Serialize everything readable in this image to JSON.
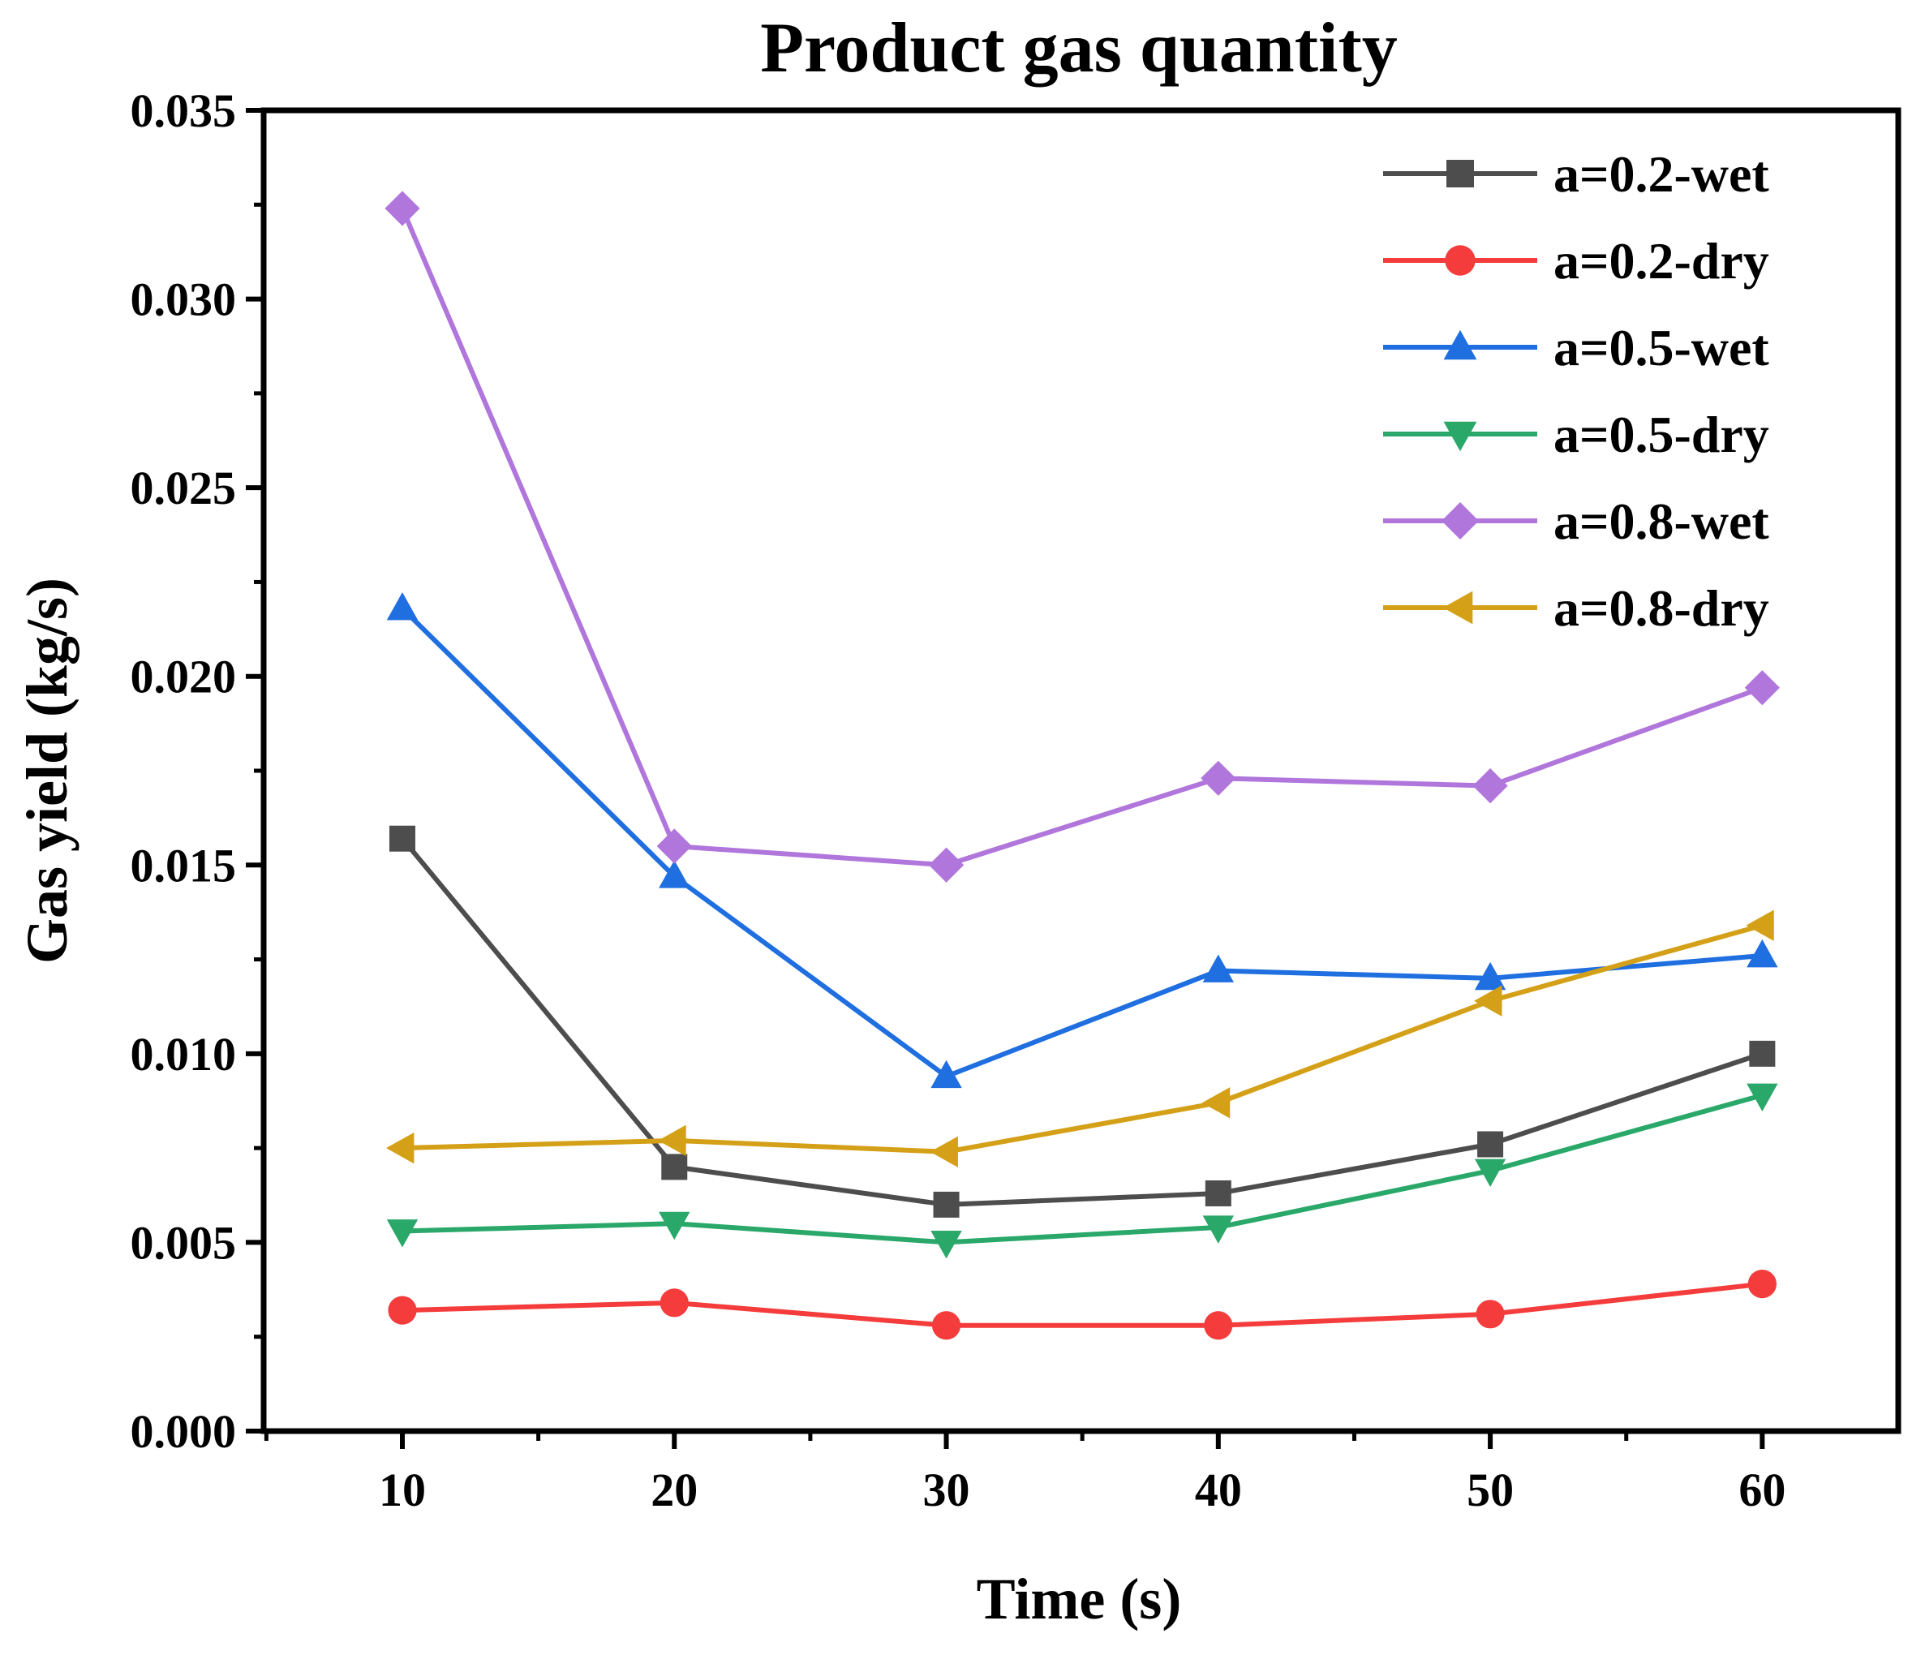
{
  "chart_data": {
    "type": "line",
    "title": "Product gas quantity",
    "xlabel": "Time (s)",
    "ylabel": "Gas yield (kg/s)",
    "x": [
      10,
      20,
      30,
      40,
      50,
      60
    ],
    "x_tick_labels": [
      "10",
      "20",
      "30",
      "40",
      "50",
      "60"
    ],
    "y_tick_labels": [
      "0.000",
      "0.005",
      "0.010",
      "0.015",
      "0.020",
      "0.025",
      "0.030",
      "0.035"
    ],
    "y_ticks": [
      0,
      0.005,
      0.01,
      0.015,
      0.02,
      0.025,
      0.03,
      0.035
    ],
    "xlim": [
      4.9,
      65
    ],
    "ylim": [
      0,
      0.035
    ],
    "grid": false,
    "legend_position": "top-right",
    "series": [
      {
        "name": "a=0.2-wet",
        "marker": "square",
        "color": "#4d4d4d",
        "values": [
          0.0157,
          0.007,
          0.006,
          0.0063,
          0.0076,
          0.01
        ]
      },
      {
        "name": "a=0.2-dry",
        "marker": "circle",
        "color": "#f53c3c",
        "values": [
          0.0032,
          0.0034,
          0.0028,
          0.0028,
          0.0031,
          0.0039
        ]
      },
      {
        "name": "a=0.5-wet",
        "marker": "triangle-up",
        "color": "#1f6fe0",
        "values": [
          0.0218,
          0.0147,
          0.0094,
          0.0122,
          0.012,
          0.0126
        ]
      },
      {
        "name": "a=0.5-dry",
        "marker": "triangle-down",
        "color": "#2aa86a",
        "values": [
          0.0053,
          0.0055,
          0.005,
          0.0054,
          0.0069,
          0.0089
        ]
      },
      {
        "name": "a=0.8-wet",
        "marker": "diamond",
        "color": "#b076dc",
        "values": [
          0.0324,
          0.0155,
          0.015,
          0.0173,
          0.0171,
          0.0197
        ]
      },
      {
        "name": "a=0.8-dry",
        "marker": "triangle-left",
        "color": "#d4a017",
        "values": [
          0.0075,
          0.0077,
          0.0074,
          0.0087,
          0.0114,
          0.0134
        ]
      }
    ]
  }
}
